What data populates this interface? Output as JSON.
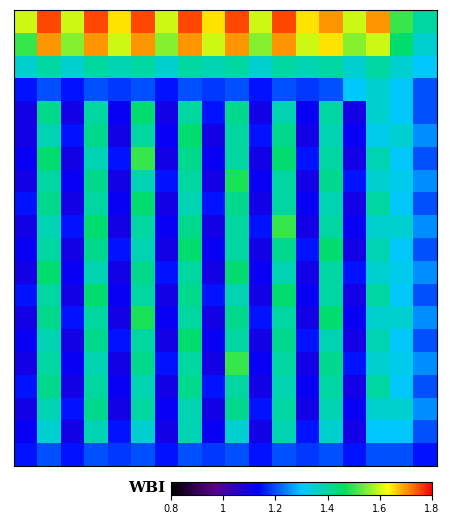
{
  "chart_data": {
    "type": "heatmap",
    "tick_labels": false,
    "cells": [
      [
        1.6,
        1.75,
        1.6,
        1.75,
        1.65,
        1.75,
        1.6,
        1.75,
        1.65,
        1.75,
        1.6,
        1.75,
        1.65,
        1.7,
        1.6,
        1.7,
        1.5,
        1.4
      ],
      [
        1.5,
        1.7,
        1.55,
        1.7,
        1.6,
        1.7,
        1.55,
        1.7,
        1.6,
        1.7,
        1.55,
        1.7,
        1.6,
        1.65,
        1.55,
        1.6,
        1.45,
        1.35
      ],
      [
        1.35,
        1.4,
        1.35,
        1.4,
        1.38,
        1.4,
        1.35,
        1.4,
        1.38,
        1.4,
        1.35,
        1.4,
        1.38,
        1.4,
        1.35,
        1.4,
        1.35,
        1.3
      ],
      [
        1.15,
        1.2,
        1.15,
        1.2,
        1.18,
        1.2,
        1.15,
        1.2,
        1.18,
        1.2,
        1.15,
        1.2,
        1.18,
        1.2,
        1.3,
        1.35,
        1.3,
        1.2
      ],
      [
        1.1,
        1.42,
        1.1,
        1.4,
        1.12,
        1.45,
        1.1,
        1.4,
        1.15,
        1.42,
        1.1,
        1.38,
        1.12,
        1.4,
        1.1,
        1.35,
        1.3,
        1.2
      ],
      [
        1.1,
        1.38,
        1.15,
        1.42,
        1.1,
        1.4,
        1.12,
        1.45,
        1.1,
        1.4,
        1.15,
        1.42,
        1.1,
        1.38,
        1.12,
        1.32,
        1.35,
        1.25
      ],
      [
        1.12,
        1.45,
        1.1,
        1.38,
        1.15,
        1.5,
        1.1,
        1.42,
        1.12,
        1.4,
        1.1,
        1.45,
        1.15,
        1.4,
        1.1,
        1.38,
        1.3,
        1.2
      ],
      [
        1.1,
        1.4,
        1.12,
        1.42,
        1.1,
        1.38,
        1.15,
        1.4,
        1.1,
        1.48,
        1.12,
        1.4,
        1.1,
        1.42,
        1.15,
        1.35,
        1.32,
        1.25
      ],
      [
        1.15,
        1.42,
        1.1,
        1.4,
        1.12,
        1.45,
        1.1,
        1.38,
        1.15,
        1.42,
        1.1,
        1.4,
        1.12,
        1.38,
        1.1,
        1.4,
        1.3,
        1.2
      ],
      [
        1.1,
        1.38,
        1.15,
        1.45,
        1.1,
        1.4,
        1.12,
        1.42,
        1.1,
        1.4,
        1.15,
        1.5,
        1.1,
        1.4,
        1.12,
        1.35,
        1.35,
        1.25
      ],
      [
        1.12,
        1.4,
        1.1,
        1.42,
        1.15,
        1.38,
        1.1,
        1.45,
        1.12,
        1.4,
        1.1,
        1.42,
        1.15,
        1.45,
        1.1,
        1.38,
        1.3,
        1.2
      ],
      [
        1.1,
        1.45,
        1.12,
        1.38,
        1.1,
        1.42,
        1.15,
        1.4,
        1.1,
        1.45,
        1.12,
        1.38,
        1.1,
        1.4,
        1.15,
        1.35,
        1.32,
        1.25
      ],
      [
        1.15,
        1.4,
        1.1,
        1.45,
        1.12,
        1.4,
        1.1,
        1.42,
        1.15,
        1.38,
        1.1,
        1.45,
        1.12,
        1.4,
        1.1,
        1.4,
        1.3,
        1.2
      ],
      [
        1.1,
        1.42,
        1.15,
        1.4,
        1.1,
        1.48,
        1.12,
        1.4,
        1.1,
        1.42,
        1.15,
        1.4,
        1.1,
        1.45,
        1.12,
        1.35,
        1.35,
        1.25
      ],
      [
        1.12,
        1.38,
        1.1,
        1.42,
        1.15,
        1.4,
        1.1,
        1.45,
        1.12,
        1.4,
        1.1,
        1.42,
        1.15,
        1.38,
        1.1,
        1.38,
        1.3,
        1.2
      ],
      [
        1.1,
        1.4,
        1.12,
        1.38,
        1.1,
        1.42,
        1.15,
        1.4,
        1.1,
        1.5,
        1.12,
        1.4,
        1.1,
        1.42,
        1.15,
        1.35,
        1.32,
        1.25
      ],
      [
        1.15,
        1.42,
        1.1,
        1.4,
        1.12,
        1.38,
        1.1,
        1.42,
        1.15,
        1.4,
        1.1,
        1.38,
        1.12,
        1.4,
        1.1,
        1.4,
        1.3,
        1.2
      ],
      [
        1.1,
        1.38,
        1.15,
        1.42,
        1.1,
        1.4,
        1.12,
        1.38,
        1.1,
        1.42,
        1.15,
        1.4,
        1.1,
        1.38,
        1.12,
        1.35,
        1.35,
        1.25
      ],
      [
        1.12,
        1.35,
        1.1,
        1.38,
        1.15,
        1.35,
        1.1,
        1.38,
        1.12,
        1.35,
        1.1,
        1.38,
        1.15,
        1.35,
        1.1,
        1.3,
        1.3,
        1.2
      ],
      [
        1.15,
        1.2,
        1.15,
        1.2,
        1.18,
        1.2,
        1.15,
        1.2,
        1.18,
        1.2,
        1.15,
        1.2,
        1.18,
        1.2,
        1.15,
        1.2,
        1.2,
        1.15
      ]
    ],
    "colorbar": {
      "label": "WBI",
      "range": [
        0.8,
        1.8
      ],
      "ticks": [
        0.8,
        1,
        1.2,
        1.4,
        1.6,
        1.8
      ]
    }
  }
}
